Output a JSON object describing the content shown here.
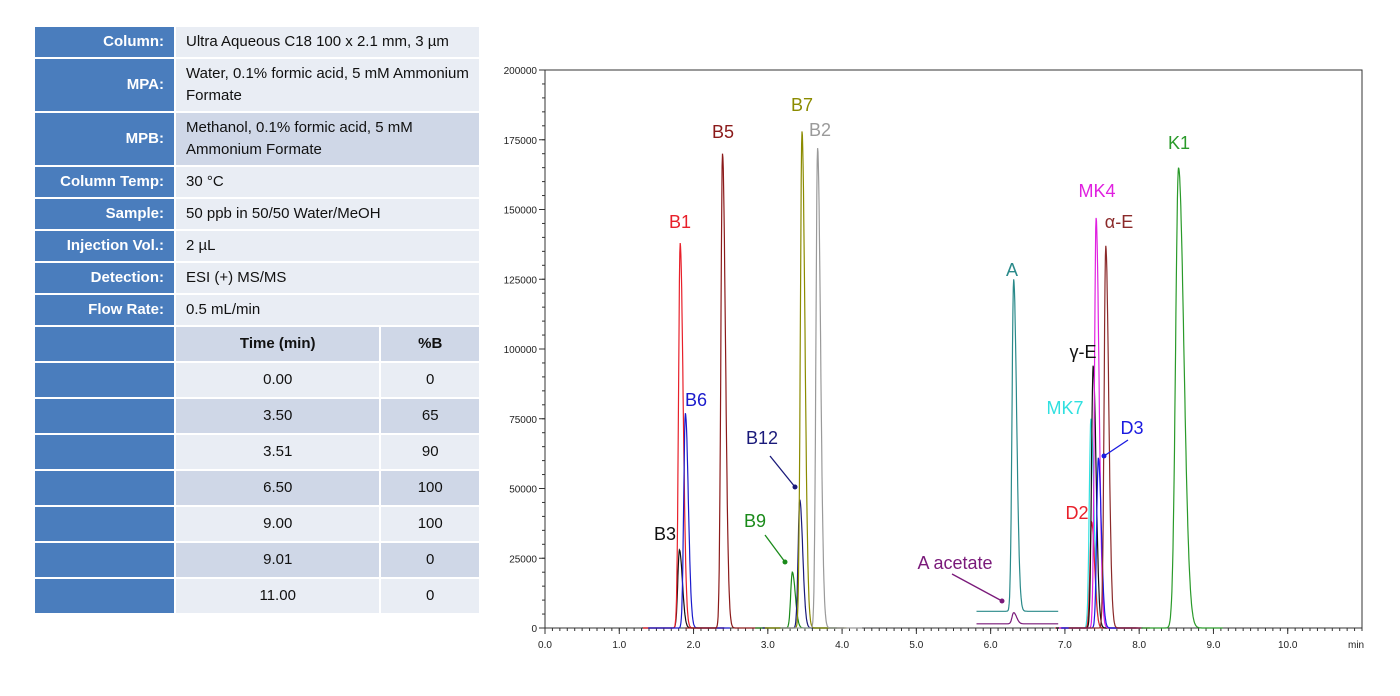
{
  "conditions": [
    {
      "label": "Column:",
      "value": "Ultra Aqueous C18 100 x 2.1 mm, 3 µm"
    },
    {
      "label": "MPA:",
      "value": "Water, 0.1% formic acid, 5 mM Ammonium Formate"
    },
    {
      "label": "MPB:",
      "value": "Methanol, 0.1% formic acid, 5 mM Ammonium Formate"
    },
    {
      "label": "Column Temp:",
      "value": "30 °C"
    },
    {
      "label": "Sample:",
      "value": "50 ppb in 50/50 Water/MeOH"
    },
    {
      "label": "Injection Vol.:",
      "value": "2 µL"
    },
    {
      "label": "Detection:",
      "value": "ESI (+) MS/MS"
    },
    {
      "label": "Flow Rate:",
      "value": "0.5 mL/min"
    }
  ],
  "gradient": {
    "headers": [
      "Time (min)",
      "%B"
    ],
    "rows": [
      [
        "0.00",
        "0"
      ],
      [
        "3.50",
        "65"
      ],
      [
        "3.51",
        "90"
      ],
      [
        "6.50",
        "100"
      ],
      [
        "9.00",
        "100"
      ],
      [
        "9.01",
        "0"
      ],
      [
        "11.00",
        "0"
      ]
    ]
  },
  "chart_data": {
    "type": "line",
    "title": "",
    "xlabel": "min",
    "ylabel": "",
    "xlim": [
      0,
      11
    ],
    "ylim": [
      0,
      200000
    ],
    "x_ticks": [
      "0.0",
      "1.0",
      "2.0",
      "3.0",
      "4.0",
      "5.0",
      "6.0",
      "7.0",
      "8.0",
      "9.0",
      "10.0"
    ],
    "y_ticks": [
      "0",
      "25000",
      "50000",
      "75000",
      "100000",
      "125000",
      "150000",
      "175000",
      "200000"
    ],
    "grid": false,
    "peaks": [
      {
        "name": "B3",
        "rt": 1.81,
        "height": 28000,
        "color": "#111111"
      },
      {
        "name": "B1",
        "rt": 1.82,
        "height": 138000,
        "color": "#e8202a"
      },
      {
        "name": "B6",
        "rt": 1.89,
        "height": 77000,
        "color": "#1a1acc"
      },
      {
        "name": "B5",
        "rt": 2.39,
        "height": 170000,
        "color": "#8b1a1a"
      },
      {
        "name": "B9",
        "rt": 3.33,
        "height": 20000,
        "color": "#1a8a1a"
      },
      {
        "name": "B12",
        "rt": 3.43,
        "height": 46000,
        "color": "#1a1a7a"
      },
      {
        "name": "B7",
        "rt": 3.46,
        "height": 178000,
        "color": "#8b8b00"
      },
      {
        "name": "B2",
        "rt": 3.67,
        "height": 172000,
        "color": "#9a9a9a"
      },
      {
        "name": "A acetate",
        "rt": 6.31,
        "height": 4000,
        "color": "#7a1a7a"
      },
      {
        "name": "A",
        "rt": 6.31,
        "height": 119000,
        "color": "#2a8a8a"
      },
      {
        "name": "MK7",
        "rt": 7.35,
        "height": 75000,
        "color": "#30e0e0"
      },
      {
        "name": "D2",
        "rt": 7.36,
        "height": 38000,
        "color": "#e8202a"
      },
      {
        "name": "γ-E",
        "rt": 7.38,
        "height": 94000,
        "color": "#111111"
      },
      {
        "name": "MK4",
        "rt": 7.42,
        "height": 147000,
        "color": "#e020e0"
      },
      {
        "name": "D3",
        "rt": 7.45,
        "height": 61000,
        "color": "#1a1ae0"
      },
      {
        "name": "α-E",
        "rt": 7.55,
        "height": 137000,
        "color": "#8b2a2a"
      },
      {
        "name": "K1",
        "rt": 8.53,
        "height": 165000,
        "color": "#2a9a2a"
      }
    ]
  }
}
